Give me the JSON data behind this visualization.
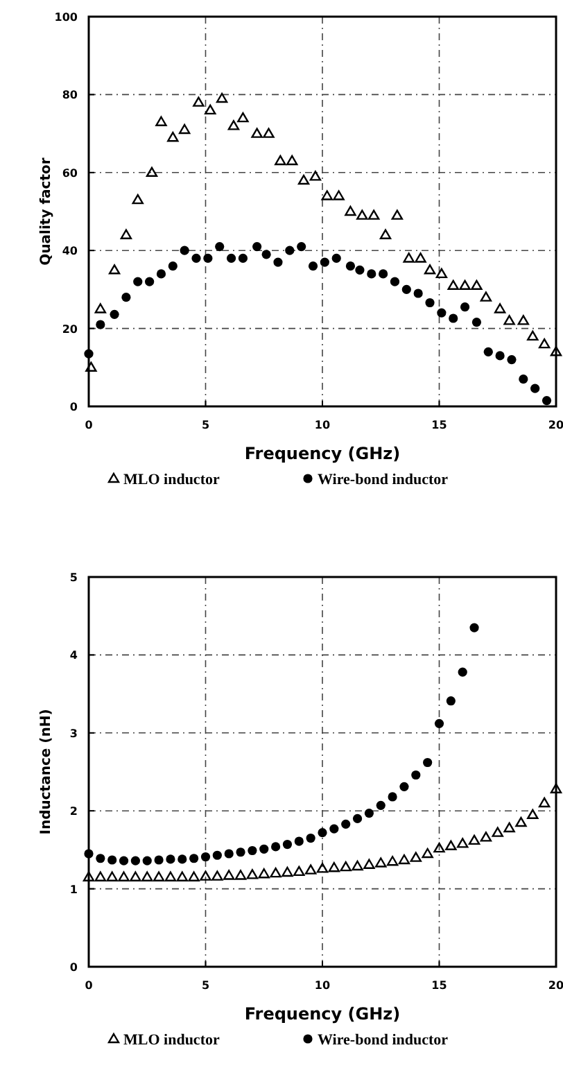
{
  "chart_data": [
    {
      "type": "scatter",
      "xlabel": "Frequency (GHz)",
      "ylabel": "Quality factor",
      "xlim": [
        0,
        20
      ],
      "ylim": [
        0,
        100
      ],
      "xticks": [
        0,
        5,
        10,
        15,
        20
      ],
      "yticks": [
        0,
        20,
        40,
        60,
        80,
        100
      ],
      "grid": true,
      "legend": "bottom",
      "series": [
        {
          "name": "MLO inductor",
          "color": "#000000",
          "marker": "triangle",
          "x": [
            0.1,
            0.5,
            1.1,
            1.6,
            2.1,
            2.7,
            3.1,
            3.6,
            4.1,
            4.7,
            5.2,
            5.7,
            6.2,
            6.6,
            7.2,
            7.7,
            8.2,
            8.7,
            9.2,
            9.7,
            10.2,
            10.7,
            11.2,
            11.7,
            12.2,
            12.7,
            13.2,
            13.7,
            14.2,
            14.6,
            15.1,
            15.6,
            16.1,
            16.6,
            17.0,
            17.6,
            18.0,
            18.6,
            19.0,
            19.5,
            20
          ],
          "values": [
            10,
            25,
            35,
            44,
            53,
            60,
            73,
            69,
            71,
            78,
            76,
            79,
            72,
            74,
            70,
            70,
            63,
            63,
            58,
            59,
            54,
            54,
            50,
            49,
            49,
            44,
            49,
            38,
            38,
            35,
            34,
            31,
            31,
            31,
            28,
            25,
            22,
            22,
            18,
            16,
            14
          ]
        },
        {
          "name": "Wire-bond inductor",
          "color": "#000000",
          "marker": "circle",
          "x": [
            0,
            0.5,
            1.1,
            1.6,
            2.1,
            2.6,
            3.1,
            3.6,
            4.1,
            4.6,
            5.1,
            5.6,
            6.1,
            6.6,
            7.2,
            7.6,
            8.1,
            8.6,
            9.1,
            9.6,
            10.1,
            10.6,
            11.2,
            11.6,
            12.1,
            12.6,
            13.1,
            13.6,
            14.1,
            14.6,
            15.1,
            15.6,
            16.1,
            16.6,
            17.1,
            17.6,
            18.1,
            18.6,
            19.1,
            19.6
          ],
          "values": [
            13.5,
            21,
            23.6,
            28,
            32,
            32,
            34,
            36,
            40,
            38,
            38,
            41,
            38,
            38,
            41,
            39,
            37,
            40,
            41,
            36,
            37,
            38,
            36,
            35,
            34,
            34,
            32,
            30,
            29,
            26.6,
            24,
            22.6,
            25.5,
            21.6,
            14,
            13,
            12,
            7,
            4.6,
            1.5
          ]
        }
      ]
    },
    {
      "type": "scatter",
      "xlabel": "Frequency (GHz)",
      "ylabel": "Inductance (nH)",
      "xlim": [
        0,
        20
      ],
      "ylim": [
        0,
        5
      ],
      "xticks": [
        0,
        5,
        10,
        15,
        20
      ],
      "yticks": [
        0,
        1,
        2,
        3,
        4,
        5
      ],
      "grid": true,
      "legend": "bottom",
      "series": [
        {
          "name": "MLO inductor",
          "color": "#000000",
          "marker": "triangle",
          "x": [
            0,
            0.5,
            1,
            1.5,
            2,
            2.5,
            3,
            3.5,
            4,
            4.5,
            5,
            5.5,
            6,
            6.5,
            7,
            7.5,
            8,
            8.5,
            9,
            9.5,
            10,
            10.5,
            11,
            11.5,
            12,
            12.5,
            13,
            13.5,
            14,
            14.5,
            15,
            15.5,
            16,
            16.5,
            17,
            17.5,
            18,
            18.5,
            19,
            19.5,
            20
          ],
          "values": [
            1.15,
            1.15,
            1.15,
            1.15,
            1.15,
            1.15,
            1.15,
            1.15,
            1.15,
            1.15,
            1.16,
            1.16,
            1.17,
            1.17,
            1.18,
            1.19,
            1.2,
            1.21,
            1.22,
            1.24,
            1.26,
            1.27,
            1.28,
            1.29,
            1.31,
            1.33,
            1.35,
            1.37,
            1.4,
            1.45,
            1.52,
            1.55,
            1.58,
            1.62,
            1.66,
            1.72,
            1.78,
            1.85,
            1.95,
            2.1,
            2.28
          ]
        },
        {
          "name": "Wire-bond inductor",
          "color": "#000000",
          "marker": "circle",
          "x": [
            0,
            0.5,
            1,
            1.5,
            2,
            2.5,
            3,
            3.5,
            4,
            4.5,
            5,
            5.5,
            6,
            6.5,
            7,
            7.5,
            8,
            8.5,
            9,
            9.5,
            10,
            10.5,
            11,
            11.5,
            12,
            12.5,
            13,
            13.5,
            14,
            14.5,
            15,
            15.5,
            16,
            16.5
          ],
          "values": [
            1.45,
            1.39,
            1.37,
            1.36,
            1.36,
            1.36,
            1.37,
            1.38,
            1.38,
            1.39,
            1.41,
            1.43,
            1.45,
            1.47,
            1.49,
            1.51,
            1.54,
            1.57,
            1.61,
            1.65,
            1.72,
            1.77,
            1.83,
            1.9,
            1.97,
            2.07,
            2.18,
            2.31,
            2.46,
            2.62,
            3.12,
            3.41,
            3.78,
            4.35
          ]
        }
      ]
    }
  ]
}
